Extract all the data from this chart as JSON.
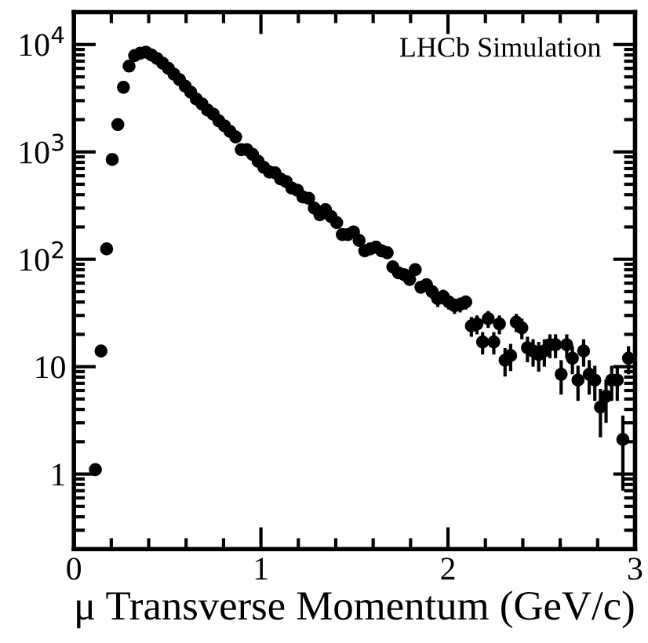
{
  "chart_data": {
    "type": "scatter",
    "xlabel": "μ Transverse Momentum (GeV/c)",
    "annotations": [
      "LHCb Simulation"
    ],
    "log": "y",
    "grid": false,
    "marker": "circle",
    "xlim": [
      0,
      3
    ],
    "xticks": [
      0,
      1,
      2,
      3
    ],
    "ylim": [
      0.2,
      20000
    ],
    "yticks": [
      1,
      10,
      {
        "value": 100,
        "label": "10$^{2}$"
      },
      {
        "value": 1000,
        "label": "10$^{3}$"
      },
      {
        "value": 10000,
        "label": "10$^{4}$"
      }
    ],
    "series": [
      {
        "color": "#000000",
        "x": [
          0.115,
          0.145,
          0.175,
          0.205,
          0.235,
          0.265,
          0.295,
          0.325,
          0.355,
          0.385,
          0.415,
          0.445,
          0.475,
          0.505,
          0.535,
          0.565,
          0.595,
          0.625,
          0.655,
          0.685,
          0.715,
          0.745,
          0.775,
          0.805,
          0.835,
          0.865,
          0.895,
          0.925,
          0.955,
          0.985,
          1.015,
          1.045,
          1.075,
          1.105,
          1.135,
          1.165,
          1.195,
          1.225,
          1.255,
          1.285,
          1.315,
          1.345,
          1.375,
          1.405,
          1.435,
          1.465,
          1.495,
          1.525,
          1.555,
          1.585,
          1.615,
          1.645,
          1.675,
          1.705,
          1.735,
          1.765,
          1.795,
          1.825,
          1.855,
          1.885,
          1.915,
          1.945,
          1.975,
          2.005,
          2.035,
          2.065,
          2.095,
          2.125,
          2.155,
          2.185,
          2.215,
          2.245,
          2.275,
          2.305,
          2.335,
          2.365,
          2.395,
          2.425,
          2.455,
          2.485,
          2.515,
          2.545,
          2.575,
          2.605,
          2.635,
          2.665,
          2.695,
          2.725,
          2.755,
          2.785,
          2.815,
          2.845,
          2.875,
          2.905,
          2.935,
          2.965
        ],
        "values": [
          1.1,
          14,
          125,
          850,
          1800,
          4000,
          6300,
          7900,
          8300,
          8500,
          8000,
          7400,
          6700,
          6000,
          5300,
          4700,
          4100,
          3600,
          3100,
          2800,
          2450,
          2250,
          1950,
          1750,
          1550,
          1380,
          1050,
          1050,
          950,
          820,
          720,
          650,
          640,
          560,
          530,
          460,
          440,
          380,
          370,
          300,
          260,
          290,
          250,
          220,
          170,
          170,
          180,
          150,
          120,
          125,
          130,
          120,
          115,
          85,
          75,
          72,
          65,
          80,
          55,
          58,
          50,
          43,
          45,
          40,
          37,
          38,
          40,
          24,
          25,
          17,
          28,
          17,
          25,
          11.5,
          12.7,
          26,
          23,
          15,
          14,
          13,
          14,
          16,
          16,
          8.5,
          16,
          12,
          7.5,
          14,
          8.5,
          7.5,
          4.2,
          5.3,
          7.5,
          7.5,
          2.1,
          12
        ],
        "errors": [
          null,
          null,
          null,
          null,
          null,
          null,
          null,
          null,
          null,
          null,
          null,
          null,
          null,
          null,
          null,
          null,
          null,
          null,
          null,
          null,
          null,
          null,
          null,
          null,
          null,
          null,
          null,
          null,
          null,
          null,
          null,
          null,
          null,
          null,
          null,
          null,
          null,
          null,
          null,
          null,
          null,
          null,
          null,
          null,
          null,
          null,
          null,
          null,
          null,
          null,
          null,
          null,
          null,
          9,
          9,
          8,
          8,
          9,
          7,
          8,
          7,
          7,
          7,
          6,
          6,
          6,
          6,
          5,
          5,
          4,
          5,
          4,
          5,
          3.4,
          3.6,
          5,
          5,
          4,
          4,
          4,
          4,
          4,
          4,
          3,
          4,
          3.5,
          2.7,
          4,
          3,
          2.7,
          2,
          2.3,
          2.7,
          2.7,
          1.4,
          3.5
        ]
      }
    ]
  }
}
